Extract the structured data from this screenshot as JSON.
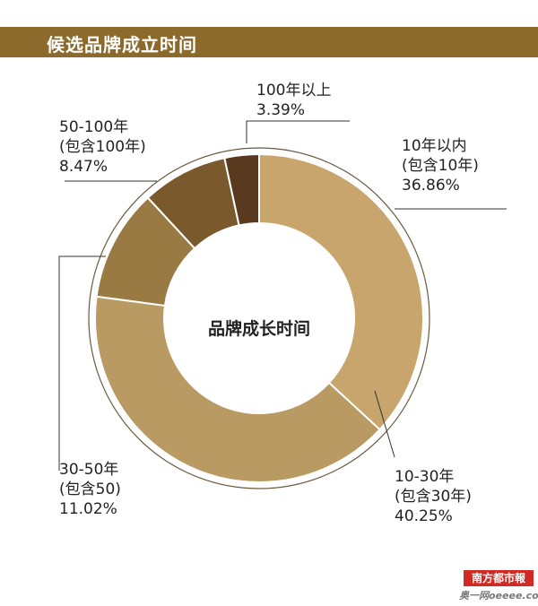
{
  "header": {
    "title": "候选品牌成立时间"
  },
  "chart_data": {
    "type": "pie",
    "title": "候选品牌成立时间",
    "center_label": "品牌成长时间",
    "slices": [
      {
        "lines": [
          "10年以内",
          "(包含10年)"
        ],
        "percent_label": "36.86%",
        "value": 36.86,
        "color": "#c8a56c"
      },
      {
        "lines": [
          "10-30年",
          "(包含30年)"
        ],
        "percent_label": "40.25%",
        "value": 40.25,
        "color": "#b89a62"
      },
      {
        "lines": [
          "30-50年",
          "(包含50)"
        ],
        "percent_label": "11.02%",
        "value": 11.02,
        "color": "#9a7a43"
      },
      {
        "lines": [
          "50-100年",
          "(包含100年)"
        ],
        "percent_label": "8.47%",
        "value": 8.47,
        "color": "#7a5a2d"
      },
      {
        "lines": [
          "100年以上"
        ],
        "percent_label": "3.39%",
        "value": 3.39,
        "color": "#5a3a1e"
      }
    ]
  },
  "watermark": {
    "logo_text": "南方都市報",
    "site_text": "奥一网oeeee.com"
  }
}
